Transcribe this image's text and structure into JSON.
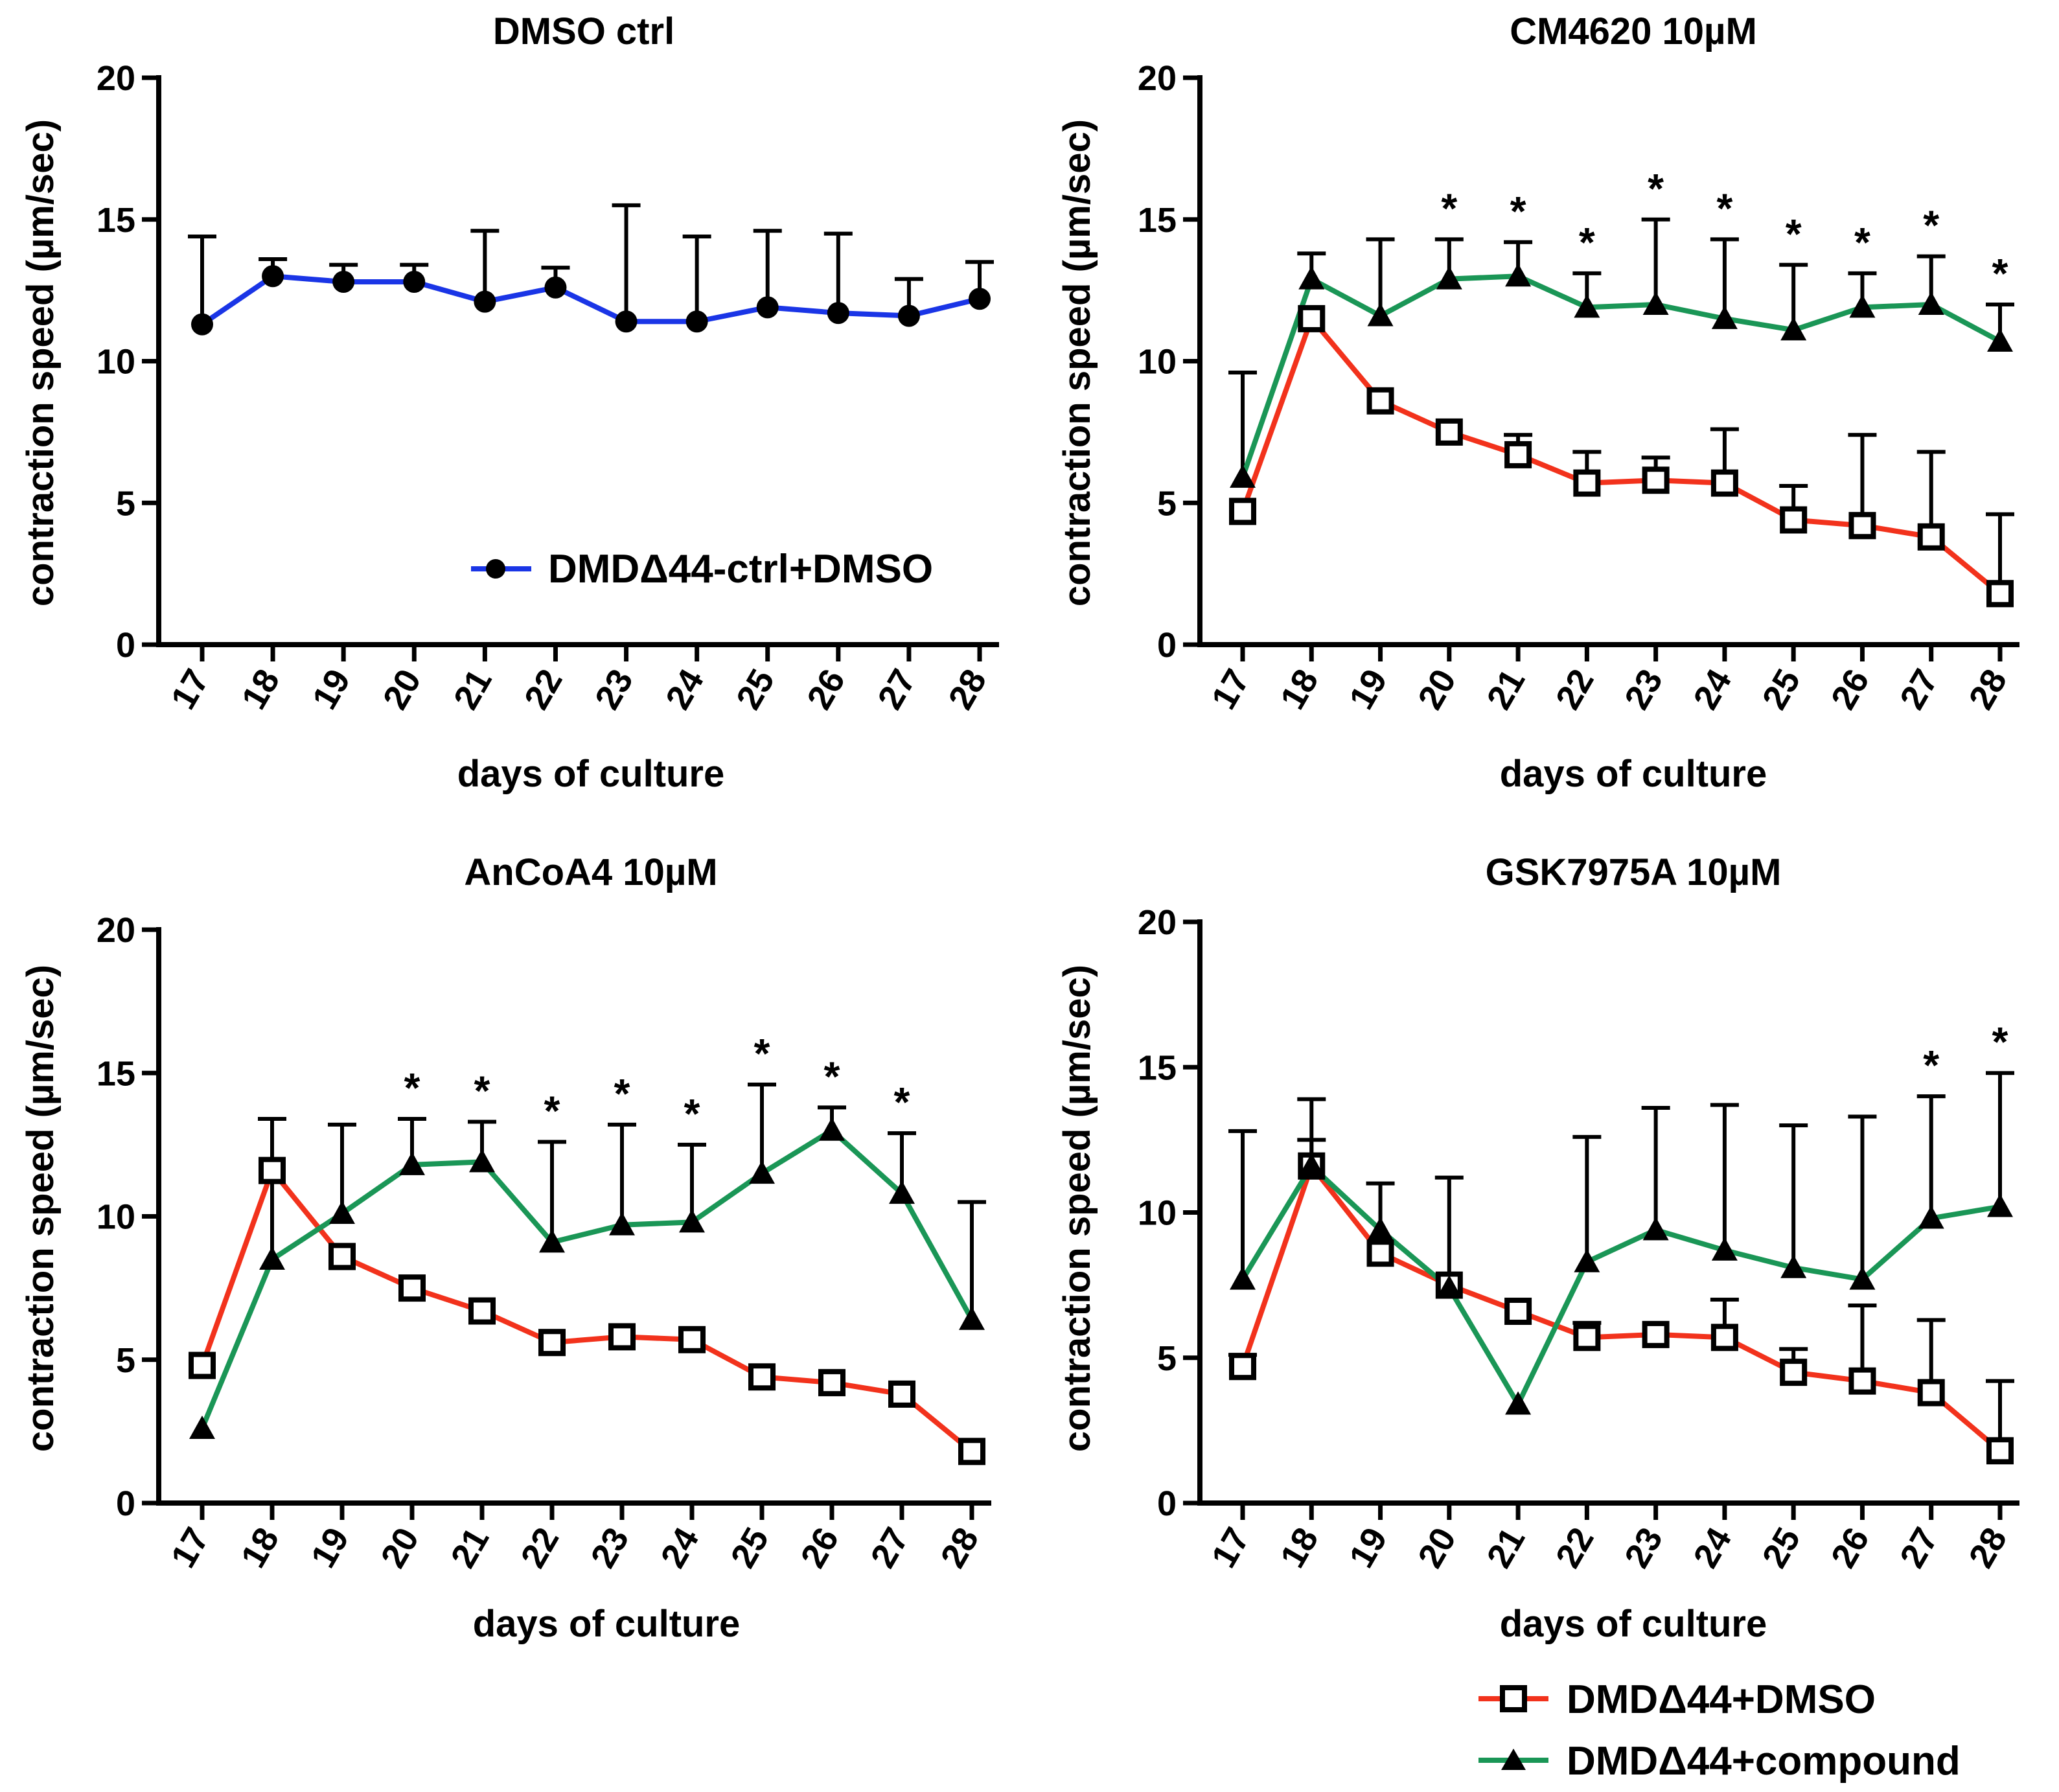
{
  "colors": {
    "ctrl": "#1a35e6",
    "dmso": "#f2321c",
    "compound": "#1a9656",
    "axis": "#000000"
  },
  "legend": {
    "ctrl_label": "DMDΔ44-ctrl+DMSO",
    "dmso_label": "DMDΔ44+DMSO",
    "compound_label": "DMDΔ44+compound"
  },
  "chart_data": [
    {
      "type": "line",
      "title": "DMSO ctrl",
      "xlabel": "days of culture",
      "ylabel": "contraction speed (µm/sec)",
      "categories": [
        "17",
        "18",
        "19",
        "20",
        "21",
        "22",
        "23",
        "24",
        "25",
        "26",
        "27",
        "28"
      ],
      "ylim": [
        0,
        20
      ],
      "yticks": [
        0,
        5,
        10,
        15,
        20
      ],
      "series": [
        {
          "name": "DMDΔ44-ctrl+DMSO",
          "key": "ctrl",
          "marker": "circle",
          "values": [
            11.3,
            13.0,
            12.8,
            12.8,
            12.1,
            12.6,
            11.4,
            11.4,
            11.9,
            11.7,
            11.6,
            12.2
          ],
          "error": [
            3.1,
            0.6,
            0.6,
            0.6,
            2.5,
            0.7,
            4.1,
            3.0,
            2.7,
            2.8,
            1.3,
            1.3
          ]
        }
      ],
      "significance": []
    },
    {
      "type": "line",
      "title": "CM4620 10µM",
      "xlabel": "days of culture",
      "ylabel": "contraction speed (µm/sec)",
      "categories": [
        "17",
        "18",
        "19",
        "20",
        "21",
        "22",
        "23",
        "24",
        "25",
        "26",
        "27",
        "28"
      ],
      "ylim": [
        0,
        20
      ],
      "yticks": [
        0,
        5,
        10,
        15,
        20
      ],
      "series": [
        {
          "name": "DMDΔ44+DMSO",
          "key": "dmso",
          "marker": "square",
          "values": [
            4.7,
            11.5,
            8.6,
            7.5,
            6.7,
            5.7,
            5.8,
            5.7,
            4.4,
            4.2,
            3.8,
            1.8
          ],
          "error": [
            0,
            0,
            0,
            0,
            0.7,
            1.1,
            0.8,
            1.9,
            1.2,
            3.2,
            3.0,
            2.8
          ]
        },
        {
          "name": "DMDΔ44+compound",
          "key": "compound",
          "marker": "triangle",
          "values": [
            5.9,
            12.9,
            11.6,
            12.9,
            13.0,
            11.9,
            12.0,
            11.5,
            11.1,
            11.9,
            12.0,
            10.7
          ],
          "error": [
            3.7,
            0.9,
            2.7,
            1.4,
            1.2,
            1.2,
            3.0,
            2.8,
            2.3,
            1.2,
            1.7,
            1.3
          ]
        }
      ],
      "significance": [
        "",
        "",
        "",
        "*",
        "*",
        "*",
        "*",
        "*",
        "*",
        "*",
        "*",
        "*"
      ]
    },
    {
      "type": "line",
      "title": "AnCoA4 10µM",
      "xlabel": "days of culture",
      "ylabel": "contraction speed (µm/sec)",
      "categories": [
        "17",
        "18",
        "19",
        "20",
        "21",
        "22",
        "23",
        "24",
        "25",
        "26",
        "27",
        "28"
      ],
      "ylim": [
        0,
        20
      ],
      "yticks": [
        0,
        5,
        10,
        15,
        20
      ],
      "series": [
        {
          "name": "DMDΔ44+DMSO",
          "key": "dmso",
          "marker": "square",
          "values": [
            4.8,
            11.6,
            8.6,
            7.5,
            6.7,
            5.6,
            5.8,
            5.7,
            4.4,
            4.2,
            3.8,
            1.8
          ],
          "error": [
            0,
            0,
            0,
            0,
            0,
            0,
            0,
            0,
            0,
            0,
            0,
            0
          ]
        },
        {
          "name": "DMDΔ44+compound",
          "key": "compound",
          "marker": "triangle",
          "values": [
            2.6,
            8.5,
            10.1,
            11.8,
            11.9,
            9.1,
            9.7,
            9.8,
            11.5,
            13.0,
            10.8,
            6.4
          ],
          "error": [
            0,
            4.9,
            3.1,
            1.6,
            1.4,
            3.5,
            3.5,
            2.7,
            3.1,
            0.8,
            2.1,
            4.1
          ]
        }
      ],
      "significance": [
        "",
        "",
        "",
        "*",
        "*",
        "*",
        "*",
        "*",
        "*",
        "*",
        "*",
        ""
      ]
    },
    {
      "type": "line",
      "title": "GSK7975A 10µM",
      "xlabel": "days of culture",
      "ylabel": "contraction speed (µm/sec)",
      "categories": [
        "17",
        "18",
        "19",
        "20",
        "21",
        "22",
        "23",
        "24",
        "25",
        "26",
        "27",
        "28"
      ],
      "ylim": [
        0,
        20
      ],
      "yticks": [
        0,
        5,
        10,
        15,
        20
      ],
      "series": [
        {
          "name": "DMDΔ44+DMSO",
          "key": "dmso",
          "marker": "square",
          "values": [
            4.7,
            11.6,
            8.6,
            7.5,
            6.6,
            5.7,
            5.8,
            5.7,
            4.5,
            4.2,
            3.8,
            1.8
          ],
          "error": [
            0.4,
            0.9,
            0,
            0,
            0,
            0.5,
            0,
            1.3,
            0.8,
            2.6,
            2.5,
            2.4
          ]
        },
        {
          "name": "DMDΔ44+compound",
          "key": "compound",
          "marker": "triangle",
          "values": [
            7.7,
            11.6,
            9.4,
            7.4,
            3.4,
            8.3,
            9.4,
            8.7,
            8.1,
            7.7,
            9.8,
            10.2
          ],
          "error": [
            5.1,
            2.3,
            1.6,
            3.8,
            0,
            4.3,
            4.2,
            5.0,
            4.9,
            5.6,
            4.2,
            4.6
          ]
        }
      ],
      "significance": [
        "",
        "",
        "",
        "",
        "",
        "",
        "",
        "",
        "",
        "",
        "*",
        "*"
      ]
    }
  ]
}
